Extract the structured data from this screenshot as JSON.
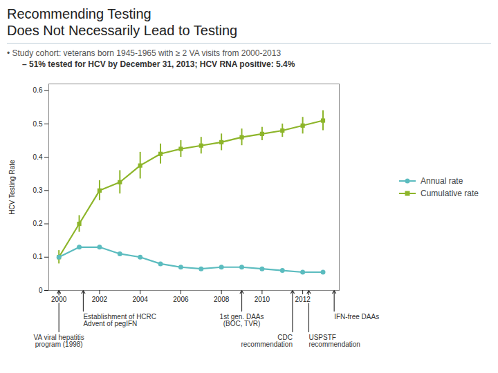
{
  "chart_data": {
    "type": "line",
    "title": "Recommending Testing\nDoes Not Necessarily Lead to Testing",
    "subtitle": [
      "• Study cohort: veterans born 1945-1965 with ≥ 2 VA visits from 2000-2013",
      "– 51% tested for HCV by December 31, 2013; HCV RNA positive: 5.4%"
    ],
    "ylabel": "HCV Testing Rate",
    "x": [
      2000,
      2001,
      2002,
      2003,
      2004,
      2005,
      2006,
      2007,
      2008,
      2009,
      2010,
      2011,
      2012,
      2013
    ],
    "series": [
      {
        "name": "Annual rate",
        "color": "#5bbcbf",
        "marker": "circle",
        "values": [
          0.1,
          0.13,
          0.13,
          0.11,
          0.1,
          0.08,
          0.07,
          0.065,
          0.07,
          0.07,
          0.065,
          0.06,
          0.055,
          0.055
        ]
      },
      {
        "name": "Cumulative rate",
        "color": "#8db52a",
        "marker": "square",
        "values": [
          0.1,
          0.2,
          0.3,
          0.325,
          0.375,
          0.41,
          0.425,
          0.435,
          0.445,
          0.46,
          0.47,
          0.48,
          0.495,
          0.51
        ],
        "error": [
          0.02,
          0.025,
          0.03,
          0.035,
          0.04,
          0.03,
          0.025,
          0.025,
          0.025,
          0.025,
          0.02,
          0.02,
          0.025,
          0.03
        ]
      }
    ],
    "xlim": [
      1999.5,
      2013.8
    ],
    "xticks": [
      2000,
      2002,
      2004,
      2006,
      2008,
      2010,
      2012
    ],
    "ylim": [
      0,
      0.62
    ],
    "yticks": [
      0,
      0.1,
      0.2,
      0.3,
      0.4,
      0.5,
      0.6
    ],
    "grid": false,
    "legend": "right",
    "annotations": [
      {
        "x": 2000.0,
        "text": "VA viral hepatitis\nprogram (1998)"
      },
      {
        "x": 2001.2,
        "text": "Establishment of HCRC\nAdvent of pegIFN"
      },
      {
        "x": 2009.0,
        "text": "1st gen. DAAs\n(BOC, TVR)"
      },
      {
        "x": 2011.5,
        "text": "CDC\nrecommendation"
      },
      {
        "x": 2012.3,
        "text": "USPSTF\nrecommendation"
      },
      {
        "x": 2013.55,
        "text": "IFN-free DAAs"
      }
    ]
  }
}
